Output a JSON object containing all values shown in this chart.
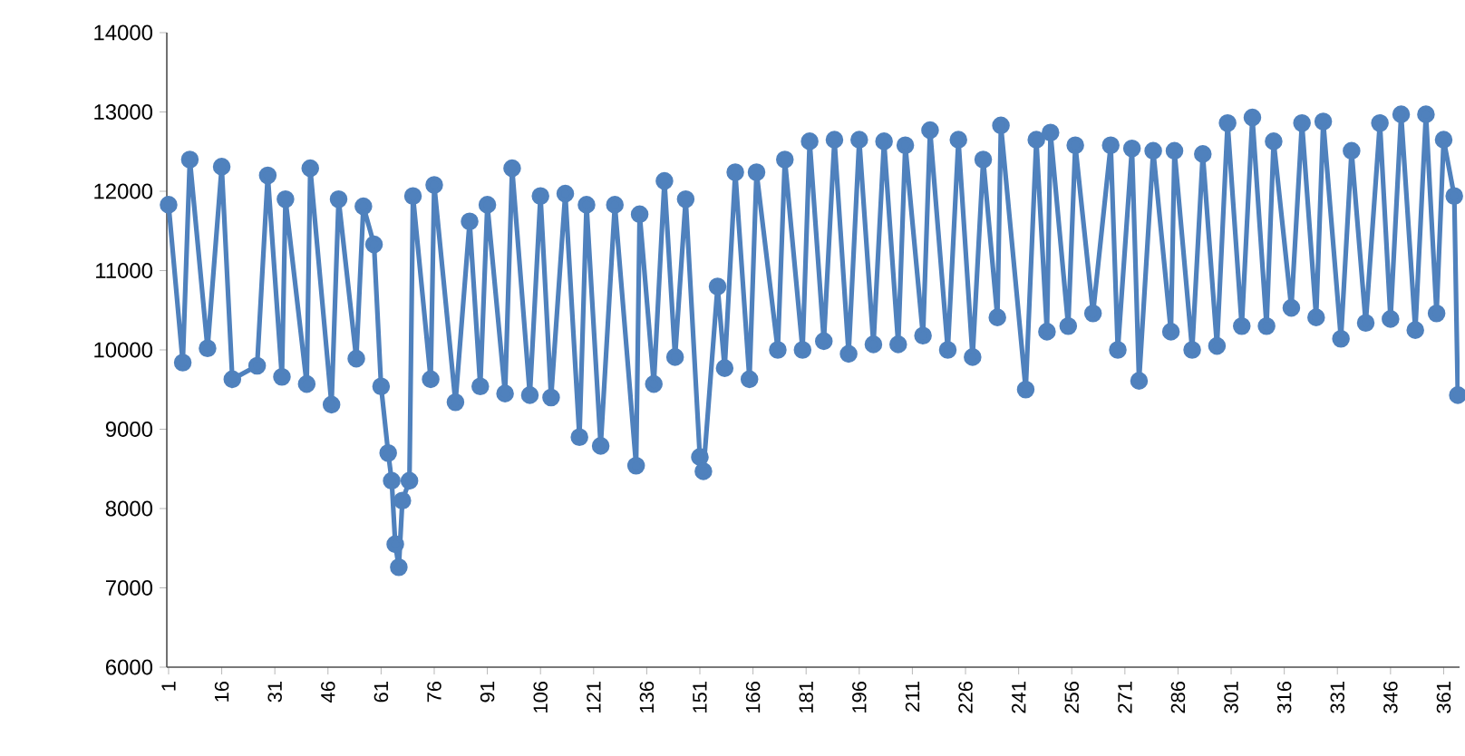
{
  "chart_data": {
    "type": "line",
    "color": "#4f81bd",
    "marker": "circle",
    "line_style": "solid",
    "grid": false,
    "x": [
      1,
      5,
      7,
      12,
      16,
      19,
      26,
      29,
      33,
      34,
      40,
      41,
      47,
      49,
      54,
      56,
      59,
      61,
      63,
      64,
      65,
      66,
      67,
      69,
      70,
      75,
      76,
      82,
      86,
      89,
      91,
      96,
      98,
      103,
      106,
      109,
      113,
      117,
      119,
      123,
      127,
      133,
      134,
      138,
      141,
      144,
      147,
      151,
      152,
      156,
      158,
      161,
      165,
      167,
      173,
      175,
      180,
      182,
      186,
      189,
      193,
      196,
      200,
      203,
      207,
      209,
      214,
      216,
      221,
      224,
      228,
      231,
      235,
      236,
      243,
      246,
      249,
      250,
      255,
      257,
      262,
      267,
      269,
      273,
      275,
      279,
      284,
      285,
      290,
      293,
      297,
      300,
      304,
      307,
      311,
      313,
      318,
      321,
      325,
      327,
      332,
      335,
      339,
      343,
      346,
      349,
      353,
      356,
      359,
      361,
      364,
      365
    ],
    "values": [
      11830,
      9840,
      12400,
      10020,
      12310,
      9630,
      9800,
      12200,
      9660,
      11900,
      9570,
      12290,
      9310,
      11900,
      9890,
      11810,
      11330,
      9540,
      8700,
      8350,
      7550,
      7260,
      8100,
      8350,
      11940,
      9630,
      12080,
      9340,
      11620,
      9540,
      11830,
      9450,
      12290,
      9430,
      11940,
      9400,
      11970,
      8900,
      11830,
      8790,
      11830,
      8540,
      11710,
      9570,
      12130,
      9910,
      11900,
      8650,
      8470,
      10800,
      9770,
      12240,
      9630,
      12240,
      10000,
      12400,
      10000,
      12630,
      10110,
      12650,
      9950,
      12650,
      10070,
      12630,
      10070,
      12580,
      10180,
      12770,
      10000,
      12650,
      9910,
      12400,
      10410,
      12830,
      9500,
      12650,
      10230,
      12740,
      10300,
      12580,
      10460,
      12580,
      10000,
      12540,
      9610,
      12510,
      10230,
      12510,
      10000,
      12470,
      10050,
      12860,
      10300,
      12930,
      10300,
      12630,
      10530,
      12860,
      10410,
      12880,
      10140,
      12510,
      10340,
      12860,
      10390,
      12970,
      10250,
      12970,
      10460,
      12650,
      11940,
      9430
    ],
    "xlim": [
      0.5,
      365.5
    ],
    "xticks": [
      1,
      16,
      31,
      46,
      61,
      76,
      91,
      106,
      121,
      136,
      151,
      166,
      181,
      196,
      211,
      226,
      241,
      256,
      271,
      286,
      301,
      316,
      331,
      346,
      361
    ],
    "ylim": [
      6000,
      14000
    ],
    "yticks": [
      6000,
      7000,
      8000,
      9000,
      10000,
      11000,
      12000,
      13000,
      14000
    ]
  }
}
